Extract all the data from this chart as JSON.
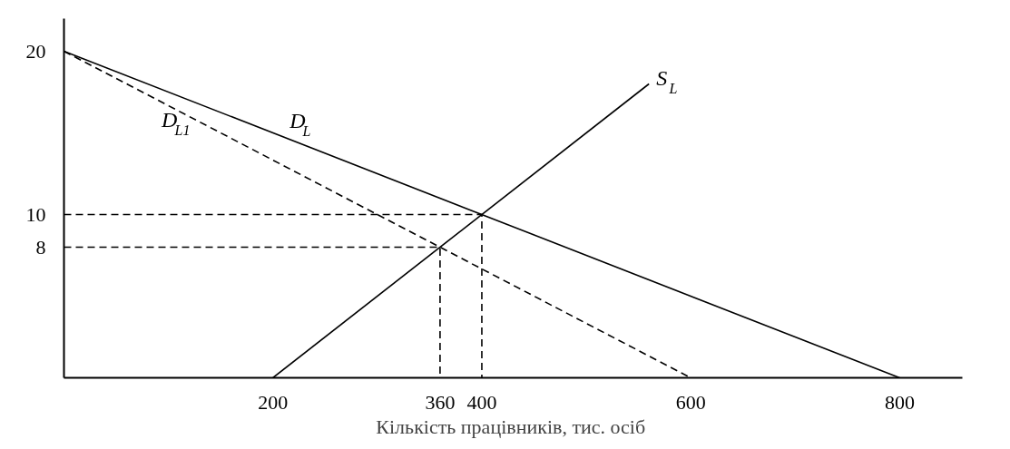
{
  "chart_data": {
    "type": "line",
    "xlabel": "Кількість  працівників, тис. осіб",
    "xlim": [
      0,
      860
    ],
    "ylim": [
      0,
      22
    ],
    "xticks": [
      200,
      360,
      400,
      600,
      800
    ],
    "yticks": [
      8,
      10,
      20
    ],
    "grid": false,
    "series": [
      {
        "name": "D$_{L}$",
        "x": [
          0,
          800
        ],
        "values": [
          20,
          0
        ],
        "color": "#000000",
        "line_style": "solid"
      },
      {
        "name": "D$_{L1}$",
        "x": [
          0,
          600
        ],
        "values": [
          20,
          0
        ],
        "color": "#000000",
        "line_style": "dashed"
      },
      {
        "name": "S$_{L}$",
        "x": [
          200,
          560
        ],
        "values": [
          0,
          18
        ],
        "color": "#000000",
        "line_style": "solid"
      },
      {
        "x": [
          0,
          400,
          400
        ],
        "values": [
          10,
          10,
          0
        ],
        "color": "#000000",
        "line_style": "dashed"
      },
      {
        "x": [
          0,
          360,
          360
        ],
        "values": [
          8,
          8,
          0
        ],
        "color": "#000000",
        "line_style": "dashed"
      }
    ]
  }
}
